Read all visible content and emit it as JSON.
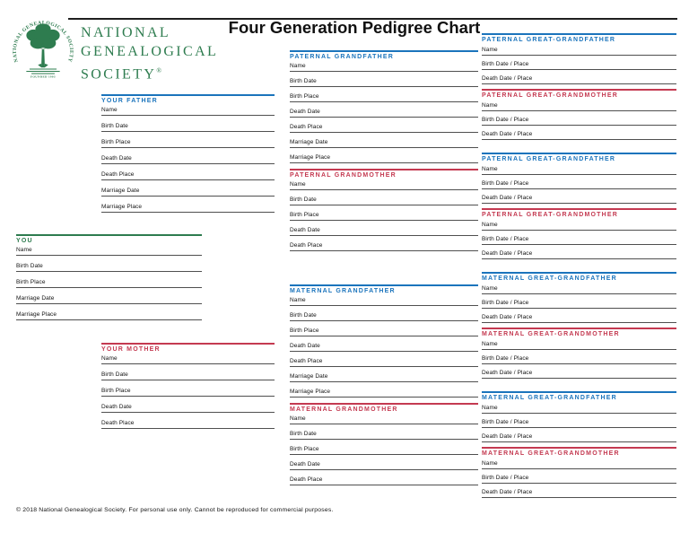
{
  "page": {
    "title": "Four Generation Pedigree Chart",
    "footer": "© 2018 National Genealogical Society. For personal use only. Cannot be reproduced for commercial purposes."
  },
  "logo": {
    "wordmark_line1": "NATIONAL",
    "wordmark_line2": "GENEALOGICAL",
    "wordmark_line3": "SOCIETY",
    "registered_mark": "®",
    "seal_ring_text": "NATIONAL GENEALOGICAL SOCIETY",
    "seal_banner_text": "FOUNDED 1903"
  },
  "colors": {
    "male_accent": "#1B74BC",
    "female_accent": "#C43A51",
    "you_accent": "#2E7C4F",
    "logo_green": "#2E7C4F",
    "rule_dark": "#1F1F1F",
    "field_line": "#4F4F4F",
    "text": "#111111"
  },
  "sections": {
    "you": {
      "title": "YOU",
      "role": "you",
      "fields": [
        "Name",
        "Birth Date",
        "Birth Place",
        "Marriage Date",
        "Marriage Place"
      ]
    },
    "father": {
      "title": "YOUR FATHER",
      "role": "male",
      "fields": [
        "Name",
        "Birth Date",
        "Birth Place",
        "Death Date",
        "Death Place",
        "Marriage Date",
        "Marriage Place"
      ]
    },
    "mother": {
      "title": "YOUR MOTHER",
      "role": "female",
      "fields": [
        "Name",
        "Birth Date",
        "Birth Place",
        "Death Date",
        "Death Place"
      ]
    },
    "grandparents": [
      {
        "title": "PATERNAL GRANDFATHER",
        "role": "male",
        "fields": [
          "Name",
          "Birth Date",
          "Birth Place",
          "Death Date",
          "Death Place",
          "Marriage Date",
          "Marriage Place"
        ]
      },
      {
        "title": "PATERNAL GRANDMOTHER",
        "role": "female",
        "fields": [
          "Name",
          "Birth Date",
          "Birth Place",
          "Death Date",
          "Death Place"
        ]
      },
      {
        "title": "MATERNAL GRANDFATHER",
        "role": "male",
        "fields": [
          "Name",
          "Birth Date",
          "Birth Place",
          "Death Date",
          "Death Place",
          "Marriage Date",
          "Marriage Place"
        ]
      },
      {
        "title": "MATERNAL GRANDMOTHER",
        "role": "female",
        "fields": [
          "Name",
          "Birth Date",
          "Birth Place",
          "Death Date",
          "Death Place"
        ]
      }
    ],
    "great_grandparents": [
      {
        "title": "PATERNAL GREAT-GRANDFATHER",
        "role": "male",
        "fields": [
          "Name",
          "Birth Date / Place",
          "Death Date / Place"
        ]
      },
      {
        "title": "PATERNAL GREAT-GRANDMOTHER",
        "role": "female",
        "fields": [
          "Name",
          "Birth Date / Place",
          "Death Date / Place"
        ]
      },
      {
        "title": "PATERNAL GREAT-GRANDFATHER",
        "role": "male",
        "fields": [
          "Name",
          "Birth Date / Place",
          "Death Date / Place"
        ]
      },
      {
        "title": "PATERNAL GREAT-GRANDMOTHER",
        "role": "female",
        "fields": [
          "Name",
          "Birth Date / Place",
          "Death Date / Place"
        ]
      },
      {
        "title": "MATERNAL GREAT-GRANDFATHER",
        "role": "male",
        "fields": [
          "Name",
          "Birth Date / Place",
          "Death Date / Place"
        ]
      },
      {
        "title": "MATERNAL GREAT-GRANDMOTHER",
        "role": "female",
        "fields": [
          "Name",
          "Birth Date / Place",
          "Death Date / Place"
        ]
      },
      {
        "title": "MATERNAL GREAT-GRANDFATHER",
        "role": "male",
        "fields": [
          "Name",
          "Birth Date / Place",
          "Death Date / Place"
        ]
      },
      {
        "title": "MATERNAL GREAT-GRANDMOTHER",
        "role": "female",
        "fields": [
          "Name",
          "Birth Date / Place",
          "Death Date / Place"
        ]
      }
    ]
  }
}
